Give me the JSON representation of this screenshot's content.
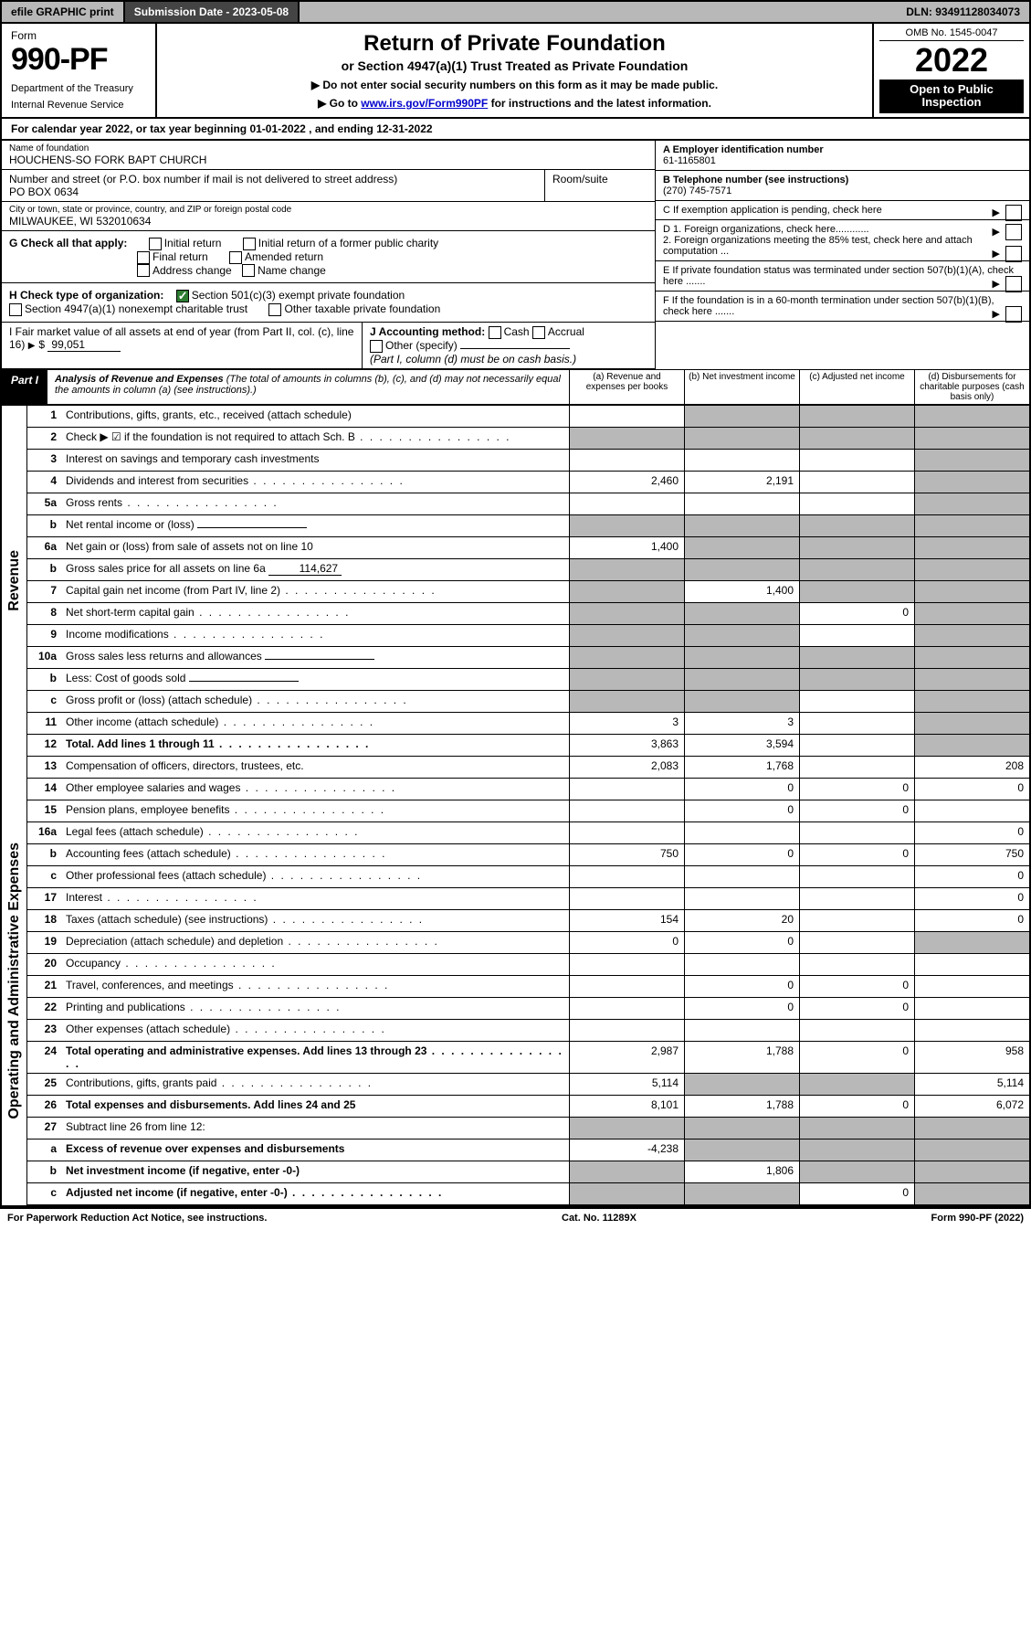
{
  "topbar": {
    "efile": "efile GRAPHIC print",
    "submission_label": "Submission Date - 2023-05-08",
    "dln": "DLN: 93491128034073"
  },
  "header": {
    "form_word": "Form",
    "form_number": "990-PF",
    "dept1": "Department of the Treasury",
    "dept2": "Internal Revenue Service",
    "title": "Return of Private Foundation",
    "subtitle": "or Section 4947(a)(1) Trust Treated as Private Foundation",
    "note1": "▶ Do not enter social security numbers on this form as it may be made public.",
    "note2_pre": "▶ Go to ",
    "note2_link": "www.irs.gov/Form990PF",
    "note2_post": " for instructions and the latest information.",
    "omb": "OMB No. 1545-0047",
    "year": "2022",
    "openpub1": "Open to Public",
    "openpub2": "Inspection"
  },
  "calyear": {
    "text_pre": "For calendar year 2022, or tax year beginning ",
    "begin": "01-01-2022",
    "mid": " , and ending ",
    "end": "12-31-2022"
  },
  "entity": {
    "name_label": "Name of foundation",
    "name": "HOUCHENS-SO FORK BAPT CHURCH",
    "addr_label": "Number and street (or P.O. box number if mail is not delivered to street address)",
    "addr": "PO BOX 0634",
    "room_label": "Room/suite",
    "room": "",
    "city_label": "City or town, state or province, country, and ZIP or foreign postal code",
    "city": "MILWAUKEE, WI  532010634",
    "ein_label": "A Employer identification number",
    "ein": "61-1165801",
    "tel_label": "B Telephone number (see instructions)",
    "tel": "(270) 745-7571",
    "c_label": "C If exemption application is pending, check here",
    "d1": "D 1. Foreign organizations, check here............",
    "d2": "2. Foreign organizations meeting the 85% test, check here and attach computation ...",
    "e": "E  If private foundation status was terminated under section 507(b)(1)(A), check here .......",
    "f": "F  If the foundation is in a 60-month termination under section 507(b)(1)(B), check here .......",
    "g_label": "G Check all that apply:",
    "g_opts": [
      "Initial return",
      "Final return",
      "Address change",
      "Initial return of a former public charity",
      "Amended return",
      "Name change"
    ],
    "h_label": "H Check type of organization:",
    "h_opt1": "Section 501(c)(3) exempt private foundation",
    "h_opt2": "Section 4947(a)(1) nonexempt charitable trust",
    "h_opt3": "Other taxable private foundation",
    "i_label": "I Fair market value of all assets at end of year (from Part II, col. (c), line 16)",
    "i_val": "99,051",
    "j_label": "J Accounting method:",
    "j_opts": [
      "Cash",
      "Accrual"
    ],
    "j_other": "Other (specify)",
    "j_note": "(Part I, column (d) must be on cash basis.)"
  },
  "part1": {
    "tag": "Part I",
    "title": "Analysis of Revenue and Expenses",
    "title_note": " (The total of amounts in columns (b), (c), and (d) may not necessarily equal the amounts in column (a) (see instructions).)",
    "col_a": "(a) Revenue and expenses per books",
    "col_b": "(b) Net investment income",
    "col_c": "(c) Adjusted net income",
    "col_d": "(d) Disbursements for charitable purposes (cash basis only)"
  },
  "sections": {
    "revenue": "Revenue",
    "opex": "Operating and Administrative Expenses"
  },
  "lines": [
    {
      "n": "1",
      "t": "Contributions, gifts, grants, etc., received (attach schedule)",
      "a": "",
      "b": "g",
      "c": "g",
      "d": "g"
    },
    {
      "n": "2",
      "t": "Check ▶ ☑ if the foundation is not required to attach Sch. B",
      "a": "g",
      "b": "g",
      "c": "g",
      "d": "g",
      "dots": true
    },
    {
      "n": "3",
      "t": "Interest on savings and temporary cash investments",
      "a": "",
      "b": "",
      "c": "",
      "d": "g"
    },
    {
      "n": "4",
      "t": "Dividends and interest from securities",
      "a": "2,460",
      "b": "2,191",
      "c": "",
      "d": "g",
      "dots": true
    },
    {
      "n": "5a",
      "t": "Gross rents",
      "a": "",
      "b": "",
      "c": "",
      "d": "g",
      "dots": true
    },
    {
      "n": "b",
      "t": "Net rental income or (loss)",
      "a": "g",
      "b": "g",
      "c": "g",
      "d": "g",
      "inline": true
    },
    {
      "n": "6a",
      "t": "Net gain or (loss) from sale of assets not on line 10",
      "a": "1,400",
      "b": "g",
      "c": "g",
      "d": "g"
    },
    {
      "n": "b",
      "t": "Gross sales price for all assets on line 6a",
      "a": "g",
      "b": "g",
      "c": "g",
      "d": "g",
      "inline_val": "114,627"
    },
    {
      "n": "7",
      "t": "Capital gain net income (from Part IV, line 2)",
      "a": "g",
      "b": "1,400",
      "c": "g",
      "d": "g",
      "dots": true
    },
    {
      "n": "8",
      "t": "Net short-term capital gain",
      "a": "g",
      "b": "g",
      "c": "0",
      "d": "g",
      "dots": true
    },
    {
      "n": "9",
      "t": "Income modifications",
      "a": "g",
      "b": "g",
      "c": "",
      "d": "g",
      "dots": true
    },
    {
      "n": "10a",
      "t": "Gross sales less returns and allowances",
      "a": "g",
      "b": "g",
      "c": "g",
      "d": "g",
      "inline": true
    },
    {
      "n": "b",
      "t": "Less: Cost of goods sold",
      "a": "g",
      "b": "g",
      "c": "g",
      "d": "g",
      "inline": true,
      "dots": true
    },
    {
      "n": "c",
      "t": "Gross profit or (loss) (attach schedule)",
      "a": "g",
      "b": "g",
      "c": "",
      "d": "g",
      "dots": true
    },
    {
      "n": "11",
      "t": "Other income (attach schedule)",
      "a": "3",
      "b": "3",
      "c": "",
      "d": "g",
      "dots": true
    },
    {
      "n": "12",
      "t": "Total. Add lines 1 through 11",
      "a": "3,863",
      "b": "3,594",
      "c": "",
      "d": "g",
      "bold": true,
      "dots": true
    }
  ],
  "oplines": [
    {
      "n": "13",
      "t": "Compensation of officers, directors, trustees, etc.",
      "a": "2,083",
      "b": "1,768",
      "c": "",
      "d": "208"
    },
    {
      "n": "14",
      "t": "Other employee salaries and wages",
      "a": "",
      "b": "0",
      "c": "0",
      "d": "0",
      "dots": true
    },
    {
      "n": "15",
      "t": "Pension plans, employee benefits",
      "a": "",
      "b": "0",
      "c": "0",
      "d": "",
      "dots": true
    },
    {
      "n": "16a",
      "t": "Legal fees (attach schedule)",
      "a": "",
      "b": "",
      "c": "",
      "d": "0",
      "dots": true
    },
    {
      "n": "b",
      "t": "Accounting fees (attach schedule)",
      "a": "750",
      "b": "0",
      "c": "0",
      "d": "750",
      "dots": true
    },
    {
      "n": "c",
      "t": "Other professional fees (attach schedule)",
      "a": "",
      "b": "",
      "c": "",
      "d": "0",
      "dots": true
    },
    {
      "n": "17",
      "t": "Interest",
      "a": "",
      "b": "",
      "c": "",
      "d": "0",
      "dots": true
    },
    {
      "n": "18",
      "t": "Taxes (attach schedule) (see instructions)",
      "a": "154",
      "b": "20",
      "c": "",
      "d": "0",
      "dots": true
    },
    {
      "n": "19",
      "t": "Depreciation (attach schedule) and depletion",
      "a": "0",
      "b": "0",
      "c": "",
      "d": "g",
      "dots": true
    },
    {
      "n": "20",
      "t": "Occupancy",
      "a": "",
      "b": "",
      "c": "",
      "d": "",
      "dots": true
    },
    {
      "n": "21",
      "t": "Travel, conferences, and meetings",
      "a": "",
      "b": "0",
      "c": "0",
      "d": "",
      "dots": true
    },
    {
      "n": "22",
      "t": "Printing and publications",
      "a": "",
      "b": "0",
      "c": "0",
      "d": "",
      "dots": true
    },
    {
      "n": "23",
      "t": "Other expenses (attach schedule)",
      "a": "",
      "b": "",
      "c": "",
      "d": "",
      "dots": true
    },
    {
      "n": "24",
      "t": "Total operating and administrative expenses. Add lines 13 through 23",
      "a": "2,987",
      "b": "1,788",
      "c": "0",
      "d": "958",
      "bold": true,
      "dots": true
    },
    {
      "n": "25",
      "t": "Contributions, gifts, grants paid",
      "a": "5,114",
      "b": "g",
      "c": "g",
      "d": "5,114",
      "dots": true
    },
    {
      "n": "26",
      "t": "Total expenses and disbursements. Add lines 24 and 25",
      "a": "8,101",
      "b": "1,788",
      "c": "0",
      "d": "6,072",
      "bold": true
    },
    {
      "n": "27",
      "t": "Subtract line 26 from line 12:",
      "a": "g",
      "b": "g",
      "c": "g",
      "d": "g"
    },
    {
      "n": "a",
      "t": "Excess of revenue over expenses and disbursements",
      "a": "-4,238",
      "b": "g",
      "c": "g",
      "d": "g",
      "bold": true
    },
    {
      "n": "b",
      "t": "Net investment income (if negative, enter -0-)",
      "a": "g",
      "b": "1,806",
      "c": "g",
      "d": "g",
      "bold": true
    },
    {
      "n": "c",
      "t": "Adjusted net income (if negative, enter -0-)",
      "a": "g",
      "b": "g",
      "c": "0",
      "d": "g",
      "bold": true,
      "dots": true
    }
  ],
  "footer": {
    "left": "For Paperwork Reduction Act Notice, see instructions.",
    "mid": "Cat. No. 11289X",
    "right": "Form 990-PF (2022)"
  }
}
